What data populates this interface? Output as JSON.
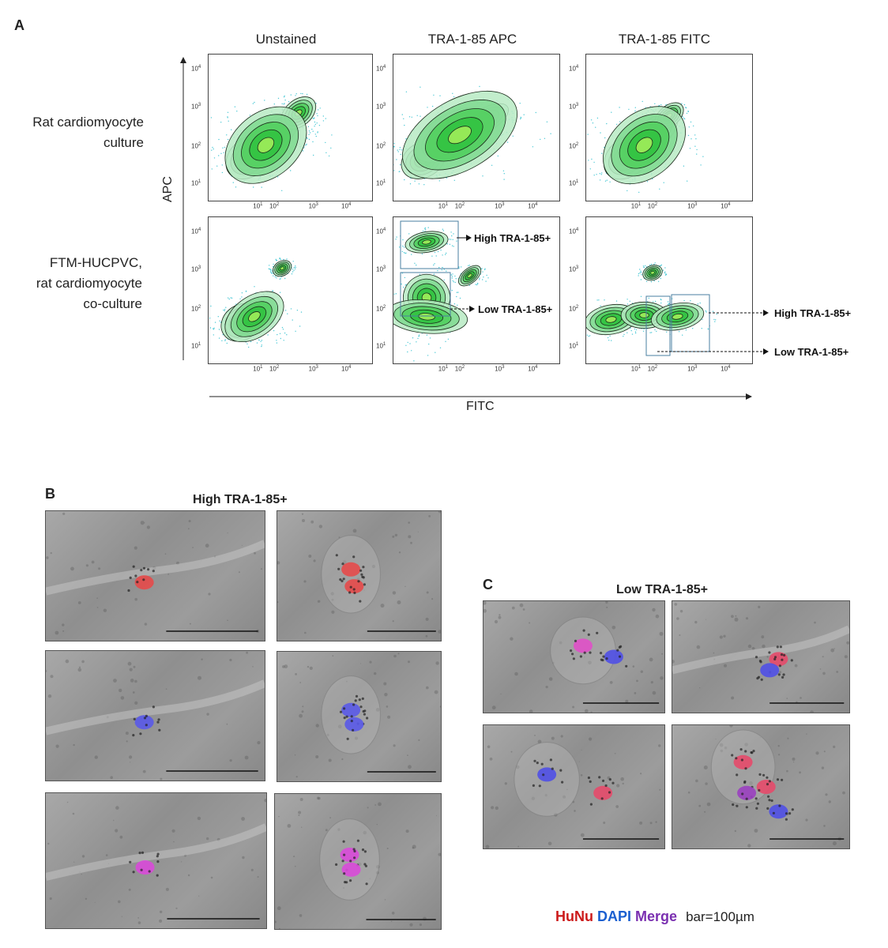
{
  "panel_a": {
    "letter": "A",
    "columns": [
      "Unstained",
      "TRA-1-85 APC",
      "TRA-1-85 FITC"
    ],
    "rows": [
      [
        "Rat cardiomyocyte",
        "culture"
      ],
      [
        "FTM-HUCPVC,",
        "rat cardiomyocyte",
        "co-culture"
      ]
    ],
    "y_axis_label": "APC",
    "x_axis_label": "FITC",
    "tick_labels": [
      "10",
      "10",
      "10",
      "10"
    ],
    "tick_exponents": [
      "1",
      "2",
      "3",
      "4"
    ],
    "gates": {
      "apc_high": "High TRA-1-85+",
      "apc_low": "Low TRA-1-85+",
      "fitc_high": "High TRA-1-85+",
      "fitc_low": "Low TRA-1-85+"
    }
  },
  "panel_b": {
    "letter": "B",
    "title": "High TRA-1-85+"
  },
  "panel_c": {
    "letter": "C",
    "title": "Low TRA-1-85+"
  },
  "legend": {
    "hunu": "HuNu",
    "hunu_color": "#cc1a1a",
    "dapi": "DAPI",
    "dapi_color": "#1a5fd0",
    "merge": "Merge",
    "merge_color": "#7a2fb0",
    "bar": "bar=100µm"
  }
}
